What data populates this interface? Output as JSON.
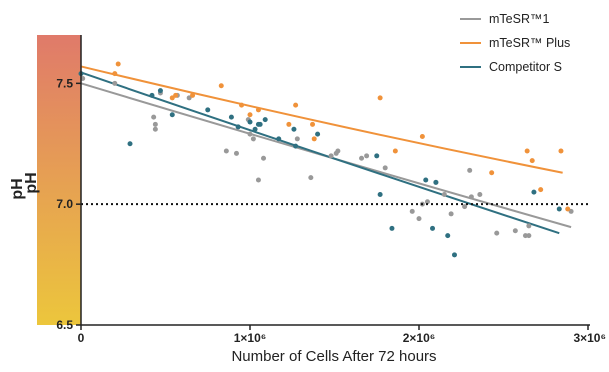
{
  "chart_data": {
    "type": "scatter",
    "xlabel": "Number of Cells After 72 hours",
    "ylabel": "pH",
    "ylabel_stacked": "pH",
    "xlim": [
      0,
      3000000
    ],
    "ylim": [
      6.5,
      7.7
    ],
    "x_ticks": [
      {
        "value": 0,
        "label": "0"
      },
      {
        "value": 1000000,
        "label": "1×10⁶"
      },
      {
        "value": 2000000,
        "label": "2×10⁶"
      },
      {
        "value": 3000000,
        "label": "3×10⁶"
      }
    ],
    "y_ticks": [
      {
        "value": 6.5,
        "label": "6.5"
      },
      {
        "value": 7.0,
        "label": "7.0"
      },
      {
        "value": 7.5,
        "label": "7.5"
      }
    ],
    "reference_line": {
      "y": 7.0,
      "style": "dotted",
      "color": "#111111"
    },
    "legend_position": "top-right",
    "gradient_bar": {
      "top_color": "#e07a6a",
      "bottom_color": "#ecc63c"
    },
    "series": [
      {
        "name": "mTeSR™1",
        "color": "#999999",
        "fit": [
          [
            0,
            7.5
          ],
          [
            2900000,
            6.905
          ]
        ],
        "points": [
          [
            10000,
            7.52
          ],
          [
            200000,
            7.5
          ],
          [
            430000,
            7.36
          ],
          [
            440000,
            7.31
          ],
          [
            440000,
            7.33
          ],
          [
            470000,
            7.46
          ],
          [
            570000,
            7.45
          ],
          [
            640000,
            7.44
          ],
          [
            860000,
            7.22
          ],
          [
            920000,
            7.21
          ],
          [
            990000,
            7.35
          ],
          [
            1000000,
            7.29
          ],
          [
            1020000,
            7.27
          ],
          [
            1050000,
            7.1
          ],
          [
            1080000,
            7.19
          ],
          [
            1280000,
            7.27
          ],
          [
            1360000,
            7.11
          ],
          [
            1480000,
            7.2
          ],
          [
            1520000,
            7.22
          ],
          [
            1510000,
            7.21
          ],
          [
            1660000,
            7.19
          ],
          [
            1690000,
            7.2
          ],
          [
            1800000,
            7.15
          ],
          [
            1960000,
            6.97
          ],
          [
            2000000,
            6.94
          ],
          [
            2020000,
            7.0
          ],
          [
            2050000,
            7.01
          ],
          [
            2100000,
            7.09
          ],
          [
            2150000,
            7.04
          ],
          [
            2190000,
            6.96
          ],
          [
            2270000,
            6.99
          ],
          [
            2300000,
            7.14
          ],
          [
            2310000,
            7.03
          ],
          [
            2360000,
            7.04
          ],
          [
            2460000,
            6.88
          ],
          [
            2570000,
            6.89
          ],
          [
            2630000,
            6.87
          ],
          [
            2650000,
            6.87
          ],
          [
            2650000,
            6.91
          ],
          [
            2900000,
            6.97
          ]
        ]
      },
      {
        "name": "mTeSR™ Plus",
        "color": "#f0923a",
        "fit": [
          [
            0,
            7.57
          ],
          [
            2850000,
            7.13
          ]
        ],
        "points": [
          [
            200000,
            7.54
          ],
          [
            220000,
            7.58
          ],
          [
            540000,
            7.44
          ],
          [
            560000,
            7.45
          ],
          [
            660000,
            7.45
          ],
          [
            830000,
            7.49
          ],
          [
            950000,
            7.41
          ],
          [
            1000000,
            7.37
          ],
          [
            1050000,
            7.39
          ],
          [
            1230000,
            7.33
          ],
          [
            1270000,
            7.41
          ],
          [
            1370000,
            7.33
          ],
          [
            1380000,
            7.27
          ],
          [
            1770000,
            7.44
          ],
          [
            1860000,
            7.22
          ],
          [
            2020000,
            7.28
          ],
          [
            2430000,
            7.13
          ],
          [
            2640000,
            7.22
          ],
          [
            2670000,
            7.18
          ],
          [
            2720000,
            7.06
          ],
          [
            2840000,
            7.22
          ],
          [
            2880000,
            6.98
          ]
        ]
      },
      {
        "name": "Competitor S",
        "color": "#2f7081",
        "fit": [
          [
            0,
            7.545
          ],
          [
            2830000,
            6.88
          ]
        ],
        "points": [
          [
            0,
            7.54
          ],
          [
            290000,
            7.25
          ],
          [
            420000,
            7.45
          ],
          [
            470000,
            7.47
          ],
          [
            540000,
            7.37
          ],
          [
            750000,
            7.39
          ],
          [
            890000,
            7.36
          ],
          [
            930000,
            7.32
          ],
          [
            1000000,
            7.34
          ],
          [
            1030000,
            7.31
          ],
          [
            1050000,
            7.33
          ],
          [
            1060000,
            7.33
          ],
          [
            1090000,
            7.35
          ],
          [
            1170000,
            7.27
          ],
          [
            1260000,
            7.31
          ],
          [
            1270000,
            7.24
          ],
          [
            1400000,
            7.29
          ],
          [
            1750000,
            7.2
          ],
          [
            1770000,
            7.04
          ],
          [
            1840000,
            6.9
          ],
          [
            2040000,
            7.1
          ],
          [
            2080000,
            6.9
          ],
          [
            2100000,
            7.09
          ],
          [
            2170000,
            6.87
          ],
          [
            2210000,
            6.79
          ],
          [
            2680000,
            7.05
          ],
          [
            2830000,
            6.98
          ]
        ]
      }
    ]
  }
}
